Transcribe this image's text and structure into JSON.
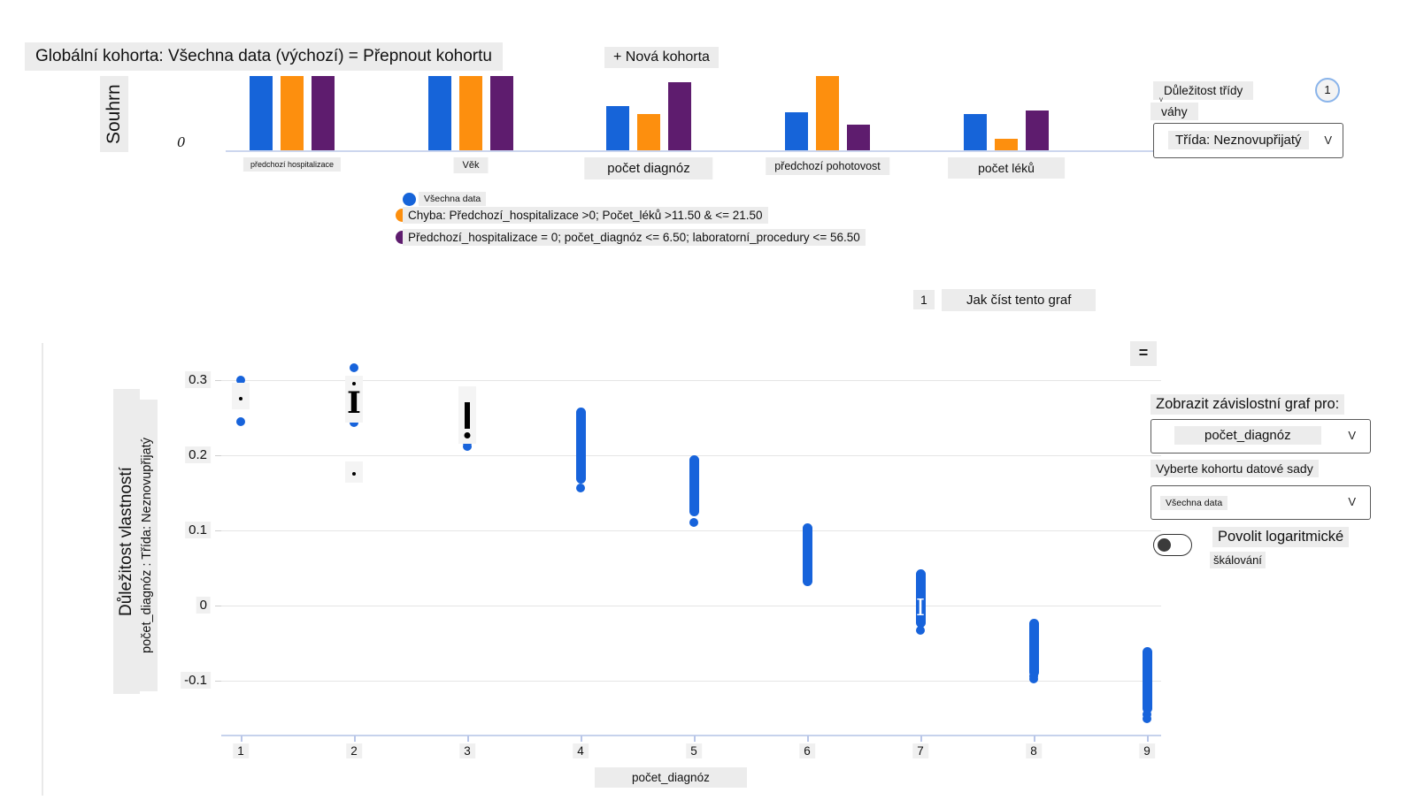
{
  "header": {
    "global_cohort": "Globální kohorta: Všechna data (výchozí) = Přepnout kohortu",
    "new_cohort": "+ Nová kohorta"
  },
  "summary": {
    "label": "Souhrn",
    "zero_tick": "0"
  },
  "class_controls": {
    "title": "Důležitost třídy",
    "badge": "1",
    "weights": "váhy",
    "selected_class": "Třída: Neznovupřijatý",
    "chevron": "V"
  },
  "legend": [
    {
      "label": "Všechna data",
      "color": "#1664d9"
    },
    {
      "label": "Chyba: Předchozí_hospitalizace >0; Počet_léků >11.50 & <= 21.50",
      "color": "#fd8f0e"
    },
    {
      "label": "Předchozí_hospitalizace = 0; počet_diagnóz <= 6.50; laboratorní_procedury <= 56.50",
      "color": "#5e1c6e"
    }
  ],
  "howto": {
    "badge": "1",
    "button": "Jak číst tento graf"
  },
  "plot": {
    "menu_icon": "="
  },
  "dep_panel": {
    "title": "Zobrazit závislostní graf pro:",
    "feature": "počet_diagnóz",
    "chevron": "V",
    "cohort_label": "Vyberte kohortu datové sady",
    "cohort": "Všechna data",
    "log_line1": "Povolit logaritmické",
    "log_line2": "škálování"
  },
  "chart_data": [
    {
      "type": "bar",
      "title": "Souhrn",
      "categories": [
        "předchozí hospitalizace",
        "Věk",
        "počet diagnóz",
        "předchozí pohotovost",
        "počet léků"
      ],
      "series": [
        {
          "name": "Všechna data",
          "color": "#1664d9",
          "values": [
            1.0,
            1.0,
            0.6,
            0.51,
            0.49
          ]
        },
        {
          "name": "Chyba: Předchozí_hospitalizace >0; Počet_léků >11.50 & <= 21.50",
          "color": "#fd8f0e",
          "values": [
            1.0,
            1.0,
            0.49,
            1.0,
            0.16
          ]
        },
        {
          "name": "Předchozí_hospitalizace = 0; počet_diagnóz <= 6.50; laboratorní_procedury <= 56.50",
          "color": "#5e1c6e",
          "values": [
            1.0,
            1.0,
            0.92,
            0.34,
            0.53
          ]
        }
      ],
      "ytick": "0",
      "note": "bars for first two categories are clipped at the chart top"
    },
    {
      "type": "scatter",
      "xlabel": "počet_diagnóz",
      "ylabel": "Důležitost vlastností",
      "ylabel2": "počet_diagnóz : Třída: Neznovupřijatý",
      "point_color": "#1763db",
      "x_ticks": [
        1,
        2,
        3,
        4,
        5,
        6,
        7,
        8,
        9
      ],
      "y_ticks": [
        0.3,
        0.2,
        0.1,
        0,
        -0.1
      ],
      "ylim": [
        -0.17,
        0.35
      ],
      "clusters": [
        {
          "x": 1,
          "type": "dots",
          "ys": [
            0.3,
            0.245
          ]
        },
        {
          "x": 2,
          "type": "dots",
          "ys": [
            0.316,
            0.244
          ]
        },
        {
          "x": 3,
          "type": "dots",
          "ys": [
            0.271,
            0.222,
            0.217,
            0.212
          ]
        },
        {
          "x": 4,
          "type": "strip",
          "y_max": 0.258,
          "y_min": 0.168,
          "extra": [
            0.157
          ]
        },
        {
          "x": 5,
          "type": "strip",
          "y_max": 0.194,
          "y_min": 0.125,
          "extra": [
            0.111
          ]
        },
        {
          "x": 6,
          "type": "strip",
          "y_max": 0.103,
          "y_min": 0.032,
          "extra": []
        },
        {
          "x": 7,
          "type": "strip",
          "y_max": 0.042,
          "y_min": -0.024,
          "extra": [
            -0.033
          ]
        },
        {
          "x": 8,
          "type": "strip",
          "y_max": -0.024,
          "y_min": -0.09,
          "extra": [
            -0.094,
            -0.098
          ]
        },
        {
          "x": 9,
          "type": "strip",
          "y_max": -0.061,
          "y_min": -0.138,
          "extra": [
            -0.145,
            -0.151
          ]
        }
      ],
      "overlays": [
        {
          "x": 1,
          "kind": "box-dot",
          "y_top": 0.296,
          "y_bottom": 0.261
        },
        {
          "x": 2,
          "kind": "box-ibeam",
          "y_top": 0.306,
          "y_bottom": 0.244
        },
        {
          "x": 2,
          "kind": "box-dot",
          "y_top": 0.192,
          "y_bottom": 0.164
        },
        {
          "x": 3,
          "kind": "box-bardot",
          "y_top": 0.292,
          "y_bottom": 0.215
        },
        {
          "x": 7,
          "kind": "white-ibeam",
          "y_top": 0.015,
          "y_bottom": -0.022
        }
      ]
    }
  ]
}
